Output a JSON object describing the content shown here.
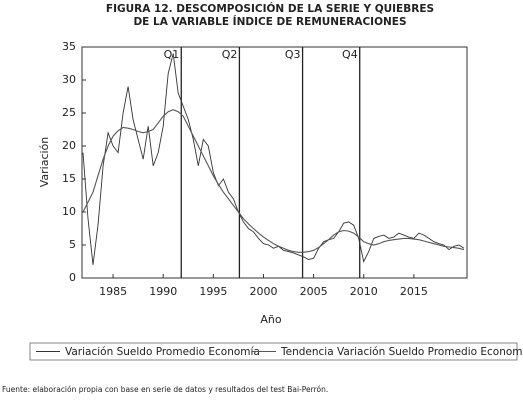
{
  "chart_data": {
    "type": "line",
    "title": [
      "FIGURA 12. DESCOMPOSICIÓN DE LA SERIE Y QUIEBRES",
      "DE LA VARIABLE ÍNDICE DE REMUNERACIONES"
    ],
    "x_label": "Año",
    "y_label": "Variación",
    "xlim": [
      1981.9,
      2020.3
    ],
    "ylim": [
      0,
      35
    ],
    "xticks": [
      1985,
      1990,
      1995,
      2000,
      2005,
      2010,
      2015
    ],
    "yticks": [
      0,
      5,
      10,
      15,
      20,
      25,
      30,
      35
    ],
    "x": [
      1982,
      1982.5,
      1983,
      1983.5,
      1984,
      1984.5,
      1985,
      1985.5,
      1986,
      1986.5,
      1987,
      1987.5,
      1988,
      1988.5,
      1989,
      1989.5,
      1990,
      1990.5,
      1991,
      1991.5,
      1992,
      1992.5,
      1993,
      1993.5,
      1994,
      1994.5,
      1995,
      1995.5,
      1996,
      1996.5,
      1997,
      1997.5,
      1998,
      1998.5,
      1999,
      1999.5,
      2000,
      2000.5,
      2001,
      2001.5,
      2002,
      2002.5,
      2003,
      2003.5,
      2004,
      2004.5,
      2005,
      2005.5,
      2006,
      2006.5,
      2007,
      2007.5,
      2008,
      2008.5,
      2009,
      2009.5,
      2010,
      2010.5,
      2011,
      2011.5,
      2012,
      2012.5,
      2013,
      2013.5,
      2014,
      2014.5,
      2015,
      2015.5,
      2016,
      2016.5,
      2017,
      2017.5,
      2018,
      2018.5,
      2019,
      2019.5,
      2020
    ],
    "series": [
      {
        "name": "Variación Sueldo Promedio Economía",
        "color": "#333333",
        "values": [
          19,
          9,
          2,
          8,
          17,
          22,
          20,
          19,
          25,
          29,
          24,
          21,
          18,
          23,
          17,
          19,
          23,
          31,
          34,
          28,
          26,
          24,
          21,
          17,
          21,
          20,
          16,
          14,
          15,
          13,
          12,
          10,
          8.5,
          7.5,
          7,
          6,
          5.2,
          5,
          4.5,
          4.8,
          4.2,
          4,
          3.8,
          3.5,
          3.2,
          2.8,
          3,
          4.5,
          5.5,
          5.8,
          6,
          7,
          8.3,
          8.5,
          8,
          6,
          2.5,
          4,
          6,
          6.3,
          6.5,
          6,
          6.2,
          6.8,
          6.5,
          6.2,
          6,
          6.8,
          6.5,
          6,
          5.5,
          5.2,
          5,
          4.3,
          4.8,
          5,
          4.5
        ]
      },
      {
        "name": "Tendencia Variación Sueldo Promedio Economía",
        "color": "#555555",
        "values": [
          10,
          11.5,
          13,
          15.5,
          18,
          20,
          21.5,
          22.3,
          22.8,
          22.7,
          22.5,
          22.2,
          22,
          22.2,
          22.5,
          23.5,
          24.5,
          25.2,
          25.5,
          25.2,
          24.5,
          23,
          21.5,
          20,
          18.5,
          17,
          15.5,
          14.2,
          13,
          12,
          11,
          10,
          9,
          8.2,
          7.5,
          6.8,
          6.2,
          5.7,
          5.2,
          4.8,
          4.5,
          4.2,
          4,
          3.9,
          3.9,
          4,
          4.2,
          4.6,
          5.2,
          5.8,
          6.5,
          7,
          7.2,
          7.1,
          6.8,
          6.2,
          5.5,
          5.2,
          5,
          5.2,
          5.5,
          5.7,
          5.8,
          5.9,
          6,
          6,
          5.9,
          5.8,
          5.6,
          5.4,
          5.2,
          5,
          4.8,
          4.7,
          4.6,
          4.5,
          4.3
        ]
      }
    ],
    "breaks": [
      {
        "label": "Q1",
        "x": 1991.8
      },
      {
        "label": "Q2",
        "x": 1997.6
      },
      {
        "label": "Q3",
        "x": 2003.9
      },
      {
        "label": "Q4",
        "x": 2009.6
      }
    ]
  },
  "footnote": "Fuente: elaboración propia con base en serie de datos y resultados del test Bai-Perrón."
}
